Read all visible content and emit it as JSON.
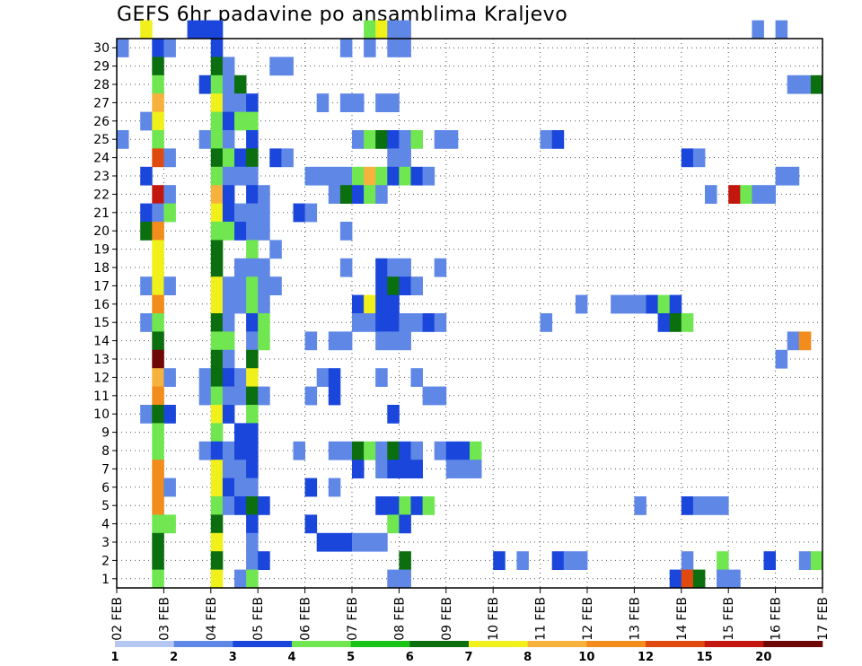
{
  "chart_data": {
    "type": "heatmap",
    "title": "GEFS 6hr padavine po ansamblima Kraljevo",
    "x_tick_labels": [
      "02 FEB",
      "03 FEB",
      "04 FEB",
      "05 FEB",
      "06 FEB",
      "07 FEB",
      "08 FEB",
      "09 FEB",
      "10 FEB",
      "11 FEB",
      "12 FEB",
      "13 FEB",
      "14 FEB",
      "15 FEB",
      "16 FEB",
      "17 FEB"
    ],
    "y_tick_labels": [
      "1",
      "2",
      "3",
      "4",
      "5",
      "6",
      "7",
      "8",
      "9",
      "10",
      "11",
      "12",
      "13",
      "14",
      "15",
      "16",
      "17",
      "18",
      "19",
      "20",
      "21",
      "22",
      "23",
      "24",
      "25",
      "26",
      "27",
      "28",
      "29",
      "30"
    ],
    "xlim": [
      0,
      60
    ],
    "ylim": [
      0,
      30
    ],
    "grid": true,
    "colorbar": {
      "labels": [
        "1",
        "2",
        "3",
        "4",
        "5",
        "6",
        "7",
        "8",
        "10",
        "12",
        "15",
        "20"
      ],
      "colors": [
        "#b5c8f2",
        "#5f87e6",
        "#1a46dc",
        "#70e651",
        "#19c416",
        "#0b6e0f",
        "#f0f01a",
        "#f7b23d",
        "#f28c1c",
        "#e04a0e",
        "#c2160e",
        "#6e0707"
      ]
    },
    "cells": [
      [
        2,
        30,
        6
      ],
      [
        6,
        30,
        2
      ],
      [
        7,
        30,
        2
      ],
      [
        8,
        30,
        2
      ],
      [
        21,
        30,
        3
      ],
      [
        22,
        30,
        6
      ],
      [
        23,
        30,
        1
      ],
      [
        24,
        30,
        1
      ],
      [
        54,
        30,
        1
      ],
      [
        56,
        30,
        1
      ],
      [
        0,
        29,
        1
      ],
      [
        3,
        29,
        2
      ],
      [
        4,
        29,
        1
      ],
      [
        8,
        29,
        2
      ],
      [
        19,
        29,
        1
      ],
      [
        21,
        29,
        1
      ],
      [
        23,
        29,
        1
      ],
      [
        24,
        29,
        1
      ],
      [
        3,
        28,
        5
      ],
      [
        8,
        28,
        5
      ],
      [
        9,
        28,
        1
      ],
      [
        13,
        28,
        1
      ],
      [
        14,
        28,
        1
      ],
      [
        3,
        27,
        3
      ],
      [
        7,
        27,
        2
      ],
      [
        8,
        27,
        3
      ],
      [
        9,
        27,
        1
      ],
      [
        10,
        27,
        5
      ],
      [
        57,
        27,
        1
      ],
      [
        58,
        27,
        1
      ],
      [
        59,
        27,
        5
      ],
      [
        3,
        26,
        7
      ],
      [
        8,
        26,
        6
      ],
      [
        9,
        26,
        1
      ],
      [
        10,
        26,
        1
      ],
      [
        11,
        26,
        2
      ],
      [
        17,
        26,
        1
      ],
      [
        19,
        26,
        1
      ],
      [
        20,
        26,
        1
      ],
      [
        22,
        26,
        1
      ],
      [
        23,
        26,
        1
      ],
      [
        2,
        25,
        1
      ],
      [
        3,
        25,
        6
      ],
      [
        8,
        25,
        3
      ],
      [
        9,
        25,
        2
      ],
      [
        10,
        25,
        3
      ],
      [
        11,
        25,
        3
      ],
      [
        0,
        24,
        1
      ],
      [
        3,
        24,
        3
      ],
      [
        7,
        24,
        1
      ],
      [
        8,
        24,
        3
      ],
      [
        9,
        24,
        1
      ],
      [
        11,
        24,
        2
      ],
      [
        20,
        24,
        1
      ],
      [
        21,
        24,
        3
      ],
      [
        22,
        24,
        5
      ],
      [
        23,
        24,
        2
      ],
      [
        24,
        24,
        1
      ],
      [
        25,
        24,
        3
      ],
      [
        27,
        24,
        1
      ],
      [
        28,
        24,
        1
      ],
      [
        36,
        24,
        1
      ],
      [
        37,
        24,
        2
      ],
      [
        3,
        23,
        9
      ],
      [
        4,
        23,
        1
      ],
      [
        8,
        23,
        5
      ],
      [
        9,
        23,
        3
      ],
      [
        10,
        23,
        2
      ],
      [
        11,
        23,
        5
      ],
      [
        13,
        23,
        2
      ],
      [
        14,
        23,
        1
      ],
      [
        23,
        23,
        1
      ],
      [
        24,
        23,
        1
      ],
      [
        48,
        23,
        2
      ],
      [
        49,
        23,
        1
      ],
      [
        2,
        22,
        2
      ],
      [
        8,
        22,
        3
      ],
      [
        9,
        22,
        1
      ],
      [
        10,
        22,
        1
      ],
      [
        11,
        22,
        1
      ],
      [
        16,
        22,
        1
      ],
      [
        17,
        22,
        1
      ],
      [
        18,
        22,
        1
      ],
      [
        19,
        22,
        1
      ],
      [
        20,
        22,
        3
      ],
      [
        21,
        22,
        7
      ],
      [
        22,
        22,
        3
      ],
      [
        23,
        22,
        2
      ],
      [
        24,
        22,
        3
      ],
      [
        25,
        22,
        2
      ],
      [
        26,
        22,
        1
      ],
      [
        56,
        22,
        1
      ],
      [
        57,
        22,
        1
      ],
      [
        3,
        21,
        10
      ],
      [
        4,
        21,
        1
      ],
      [
        8,
        21,
        7
      ],
      [
        9,
        21,
        2
      ],
      [
        11,
        21,
        2
      ],
      [
        12,
        21,
        1
      ],
      [
        18,
        21,
        1
      ],
      [
        19,
        21,
        5
      ],
      [
        20,
        21,
        2
      ],
      [
        21,
        21,
        3
      ],
      [
        22,
        21,
        1
      ],
      [
        50,
        21,
        1
      ],
      [
        52,
        21,
        10
      ],
      [
        53,
        21,
        3
      ],
      [
        54,
        21,
        1
      ],
      [
        55,
        21,
        1
      ],
      [
        2,
        20,
        2
      ],
      [
        3,
        20,
        1
      ],
      [
        4,
        20,
        3
      ],
      [
        8,
        20,
        6
      ],
      [
        9,
        20,
        2
      ],
      [
        10,
        20,
        1
      ],
      [
        11,
        20,
        1
      ],
      [
        12,
        20,
        1
      ],
      [
        15,
        20,
        2
      ],
      [
        16,
        20,
        1
      ],
      [
        2,
        19,
        5
      ],
      [
        3,
        19,
        8
      ],
      [
        8,
        19,
        3
      ],
      [
        9,
        19,
        3
      ],
      [
        10,
        19,
        2
      ],
      [
        11,
        19,
        1
      ],
      [
        12,
        19,
        1
      ],
      [
        19,
        19,
        1
      ],
      [
        3,
        18,
        6
      ],
      [
        8,
        18,
        5
      ],
      [
        11,
        18,
        3
      ],
      [
        13,
        18,
        1
      ],
      [
        3,
        17,
        6
      ],
      [
        8,
        17,
        5
      ],
      [
        10,
        17,
        1
      ],
      [
        11,
        17,
        1
      ],
      [
        12,
        17,
        1
      ],
      [
        19,
        17,
        1
      ],
      [
        22,
        17,
        2
      ],
      [
        23,
        17,
        1
      ],
      [
        24,
        17,
        1
      ],
      [
        27,
        17,
        1
      ],
      [
        2,
        16,
        1
      ],
      [
        3,
        16,
        6
      ],
      [
        4,
        16,
        1
      ],
      [
        8,
        16,
        6
      ],
      [
        9,
        16,
        1
      ],
      [
        10,
        16,
        1
      ],
      [
        11,
        16,
        3
      ],
      [
        12,
        16,
        1
      ],
      [
        13,
        16,
        1
      ],
      [
        22,
        16,
        2
      ],
      [
        23,
        16,
        5
      ],
      [
        24,
        16,
        2
      ],
      [
        25,
        16,
        1
      ],
      [
        3,
        15,
        8
      ],
      [
        8,
        15,
        6
      ],
      [
        9,
        15,
        1
      ],
      [
        10,
        15,
        1
      ],
      [
        11,
        15,
        3
      ],
      [
        12,
        15,
        1
      ],
      [
        20,
        15,
        2
      ],
      [
        21,
        15,
        6
      ],
      [
        22,
        15,
        2
      ],
      [
        23,
        15,
        2
      ],
      [
        39,
        15,
        1
      ],
      [
        42,
        15,
        1
      ],
      [
        43,
        15,
        1
      ],
      [
        44,
        15,
        1
      ],
      [
        45,
        15,
        2
      ],
      [
        46,
        15,
        3
      ],
      [
        47,
        15,
        2
      ],
      [
        2,
        14,
        1
      ],
      [
        3,
        14,
        3
      ],
      [
        8,
        14,
        5
      ],
      [
        9,
        14,
        1
      ],
      [
        11,
        14,
        2
      ],
      [
        12,
        14,
        3
      ],
      [
        20,
        14,
        1
      ],
      [
        21,
        14,
        1
      ],
      [
        22,
        14,
        2
      ],
      [
        23,
        14,
        2
      ],
      [
        24,
        14,
        1
      ],
      [
        25,
        14,
        1
      ],
      [
        26,
        14,
        2
      ],
      [
        27,
        14,
        1
      ],
      [
        36,
        14,
        1
      ],
      [
        46,
        14,
        2
      ],
      [
        47,
        14,
        5
      ],
      [
        48,
        14,
        3
      ],
      [
        3,
        13,
        5
      ],
      [
        8,
        13,
        3
      ],
      [
        9,
        13,
        3
      ],
      [
        11,
        13,
        1
      ],
      [
        12,
        13,
        3
      ],
      [
        16,
        13,
        1
      ],
      [
        18,
        13,
        1
      ],
      [
        19,
        13,
        1
      ],
      [
        22,
        13,
        1
      ],
      [
        23,
        13,
        1
      ],
      [
        24,
        13,
        1
      ],
      [
        57,
        13,
        1
      ],
      [
        58,
        13,
        8
      ],
      [
        3,
        12,
        11
      ],
      [
        8,
        12,
        5
      ],
      [
        9,
        12,
        1
      ],
      [
        11,
        12,
        5
      ],
      [
        56,
        12,
        1
      ],
      [
        3,
        11,
        7
      ],
      [
        4,
        11,
        1
      ],
      [
        7,
        11,
        1
      ],
      [
        8,
        11,
        5
      ],
      [
        9,
        11,
        2
      ],
      [
        10,
        11,
        1
      ],
      [
        11,
        11,
        6
      ],
      [
        17,
        11,
        1
      ],
      [
        18,
        11,
        2
      ],
      [
        22,
        11,
        1
      ],
      [
        25,
        11,
        1
      ],
      [
        3,
        10,
        8
      ],
      [
        7,
        10,
        1
      ],
      [
        8,
        10,
        3
      ],
      [
        9,
        10,
        1
      ],
      [
        10,
        10,
        1
      ],
      [
        11,
        10,
        5
      ],
      [
        12,
        10,
        1
      ],
      [
        16,
        10,
        1
      ],
      [
        18,
        10,
        2
      ],
      [
        26,
        10,
        1
      ],
      [
        27,
        10,
        1
      ],
      [
        2,
        9,
        1
      ],
      [
        3,
        9,
        5
      ],
      [
        4,
        9,
        2
      ],
      [
        8,
        9,
        6
      ],
      [
        9,
        9,
        2
      ],
      [
        11,
        9,
        3
      ],
      [
        23,
        9,
        2
      ],
      [
        3,
        8,
        3
      ],
      [
        8,
        8,
        3
      ],
      [
        10,
        8,
        2
      ],
      [
        11,
        8,
        2
      ],
      [
        3,
        7,
        3
      ],
      [
        7,
        7,
        1
      ],
      [
        8,
        7,
        2
      ],
      [
        9,
        7,
        1
      ],
      [
        10,
        7,
        2
      ],
      [
        11,
        7,
        2
      ],
      [
        15,
        7,
        1
      ],
      [
        18,
        7,
        1
      ],
      [
        19,
        7,
        1
      ],
      [
        20,
        7,
        5
      ],
      [
        21,
        7,
        3
      ],
      [
        22,
        7,
        1
      ],
      [
        23,
        7,
        5
      ],
      [
        24,
        7,
        2
      ],
      [
        25,
        7,
        1
      ],
      [
        27,
        7,
        1
      ],
      [
        28,
        7,
        2
      ],
      [
        29,
        7,
        2
      ],
      [
        30,
        7,
        3
      ],
      [
        3,
        6,
        8
      ],
      [
        8,
        6,
        6
      ],
      [
        9,
        6,
        1
      ],
      [
        10,
        6,
        1
      ],
      [
        11,
        6,
        2
      ],
      [
        20,
        6,
        2
      ],
      [
        22,
        6,
        1
      ],
      [
        23,
        6,
        2
      ],
      [
        24,
        6,
        2
      ],
      [
        25,
        6,
        2
      ],
      [
        28,
        6,
        1
      ],
      [
        29,
        6,
        1
      ],
      [
        30,
        6,
        1
      ],
      [
        3,
        5,
        8
      ],
      [
        4,
        5,
        1
      ],
      [
        8,
        5,
        6
      ],
      [
        9,
        5,
        2
      ],
      [
        10,
        5,
        1
      ],
      [
        11,
        5,
        1
      ],
      [
        16,
        5,
        2
      ],
      [
        18,
        5,
        1
      ],
      [
        3,
        4,
        8
      ],
      [
        8,
        4,
        3
      ],
      [
        9,
        4,
        1
      ],
      [
        10,
        4,
        2
      ],
      [
        11,
        4,
        5
      ],
      [
        12,
        4,
        2
      ],
      [
        22,
        4,
        2
      ],
      [
        23,
        4,
        2
      ],
      [
        24,
        4,
        3
      ],
      [
        25,
        4,
        2
      ],
      [
        26,
        4,
        3
      ],
      [
        44,
        4,
        1
      ],
      [
        48,
        4,
        2
      ],
      [
        49,
        4,
        1
      ],
      [
        50,
        4,
        1
      ],
      [
        51,
        4,
        1
      ],
      [
        3,
        3,
        3
      ],
      [
        4,
        3,
        3
      ],
      [
        8,
        3,
        5
      ],
      [
        11,
        3,
        2
      ],
      [
        16,
        3,
        2
      ],
      [
        23,
        3,
        3
      ],
      [
        24,
        3,
        2
      ],
      [
        3,
        2,
        5
      ],
      [
        8,
        2,
        6
      ],
      [
        11,
        2,
        1
      ],
      [
        17,
        2,
        2
      ],
      [
        18,
        2,
        2
      ],
      [
        19,
        2,
        2
      ],
      [
        20,
        2,
        1
      ],
      [
        21,
        2,
        1
      ],
      [
        22,
        2,
        1
      ],
      [
        3,
        1,
        5
      ],
      [
        8,
        1,
        5
      ],
      [
        11,
        1,
        1
      ],
      [
        12,
        1,
        2
      ],
      [
        24,
        1,
        5
      ],
      [
        32,
        1,
        2
      ],
      [
        34,
        1,
        1
      ],
      [
        37,
        1,
        2
      ],
      [
        38,
        1,
        1
      ],
      [
        39,
        1,
        1
      ],
      [
        48,
        1,
        1
      ],
      [
        51,
        1,
        3
      ],
      [
        55,
        1,
        2
      ],
      [
        58,
        1,
        1
      ],
      [
        59,
        1,
        3
      ],
      [
        3,
        0,
        3
      ],
      [
        8,
        0,
        6
      ],
      [
        10,
        0,
        1
      ],
      [
        11,
        0,
        3
      ],
      [
        23,
        0,
        1
      ],
      [
        24,
        0,
        1
      ],
      [
        47,
        0,
        2
      ],
      [
        48,
        0,
        9
      ],
      [
        49,
        0,
        5
      ],
      [
        51,
        0,
        1
      ],
      [
        52,
        0,
        1
      ]
    ]
  }
}
